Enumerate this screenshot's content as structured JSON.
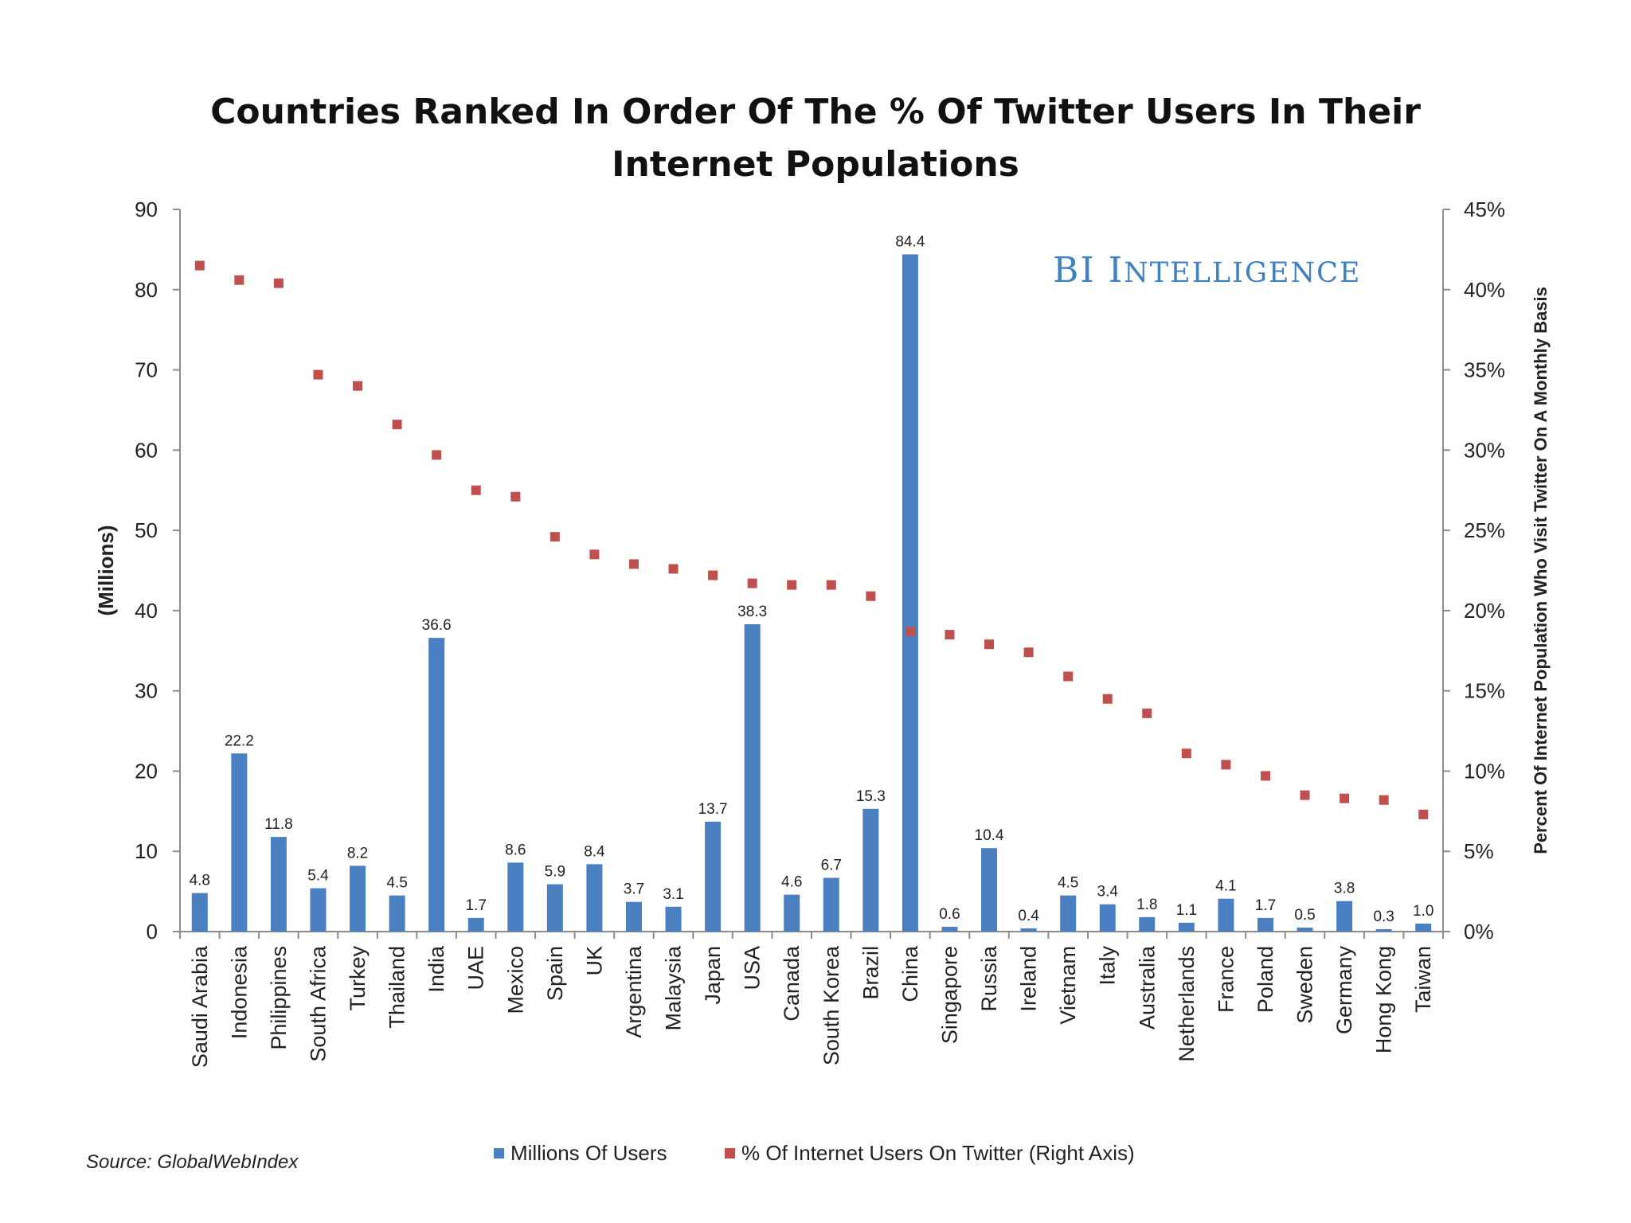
{
  "title_lines": [
    "Countries Ranked In Order Of The % Of Twitter Users In Their",
    "Internet Populations"
  ],
  "brand": {
    "big1": "BI",
    "big2": "I",
    "small": "NTELLIGENCE",
    "color": "#3f7fc4"
  },
  "source": "Source: GlobalWebIndex",
  "chart_data": {
    "type": "bar+scatter",
    "title": "Countries Ranked In Order Of The % Of Twitter Users In Their Internet Populations",
    "ylabel": "(Millions)",
    "y2label": "Percent Of Internet Population Who Visit Twitter On A Monthly Basis",
    "ylim": [
      0,
      90
    ],
    "y2lim": [
      0,
      45
    ],
    "yticks": [
      0,
      10,
      20,
      30,
      40,
      50,
      60,
      70,
      80,
      90
    ],
    "y2ticks": [
      "0%",
      "5%",
      "10%",
      "15%",
      "20%",
      "25%",
      "30%",
      "35%",
      "40%",
      "45%"
    ],
    "categories": [
      "Saudi Arabia",
      "Indonesia",
      "Philippines",
      "South Africa",
      "Turkey",
      "Thailand",
      "India",
      "UAE",
      "Mexico",
      "Spain",
      "UK",
      "Argentina",
      "Malaysia",
      "Japan",
      "USA",
      "Canada",
      "South Korea",
      "Brazil",
      "China",
      "Singapore",
      "Russia",
      "Ireland",
      "Vietnam",
      "Italy",
      "Australia",
      "Netherlands",
      "France",
      "Poland",
      "Sweden",
      "Germany",
      "Hong Kong",
      "Taiwan"
    ],
    "series": [
      {
        "name": "Millions Of Users",
        "kind": "bar",
        "axis": "left",
        "color": "#4a80c2",
        "values": [
          4.8,
          22.2,
          11.8,
          5.4,
          8.2,
          4.5,
          36.6,
          1.7,
          8.6,
          5.9,
          8.4,
          3.7,
          3.1,
          13.7,
          38.3,
          4.6,
          6.7,
          15.3,
          84.4,
          0.6,
          10.4,
          0.4,
          4.5,
          3.4,
          1.8,
          1.1,
          4.1,
          1.7,
          0.5,
          3.8,
          0.3,
          1.0
        ],
        "labels": [
          "4.8",
          "22.2",
          "11.8",
          "5.4",
          "8.2",
          "4.5",
          "36.6",
          "1.7",
          "8.6",
          "5.9",
          "8.4",
          "3.7",
          "3.1",
          "13.7",
          "38.3",
          "4.6",
          "6.7",
          "15.3",
          "84.4",
          "0.6",
          "10.4",
          "0.4",
          "4.5",
          "3.4",
          "1.8",
          "1.1",
          "4.1",
          "1.7",
          "0.5",
          "3.8",
          "0.3",
          "1.0"
        ]
      },
      {
        "name": "% Of Internet Users On Twitter (Right Axis)",
        "kind": "scatter",
        "axis": "right",
        "color": "#c0504d",
        "values": [
          41.5,
          40.6,
          40.4,
          34.7,
          34.0,
          31.6,
          29.7,
          27.5,
          27.1,
          24.6,
          23.5,
          22.9,
          22.6,
          22.2,
          21.7,
          21.6,
          21.6,
          20.9,
          18.7,
          18.5,
          17.9,
          17.4,
          15.9,
          14.5,
          13.6,
          11.1,
          10.4,
          9.7,
          8.5,
          8.3,
          8.2,
          7.3
        ]
      }
    ]
  }
}
